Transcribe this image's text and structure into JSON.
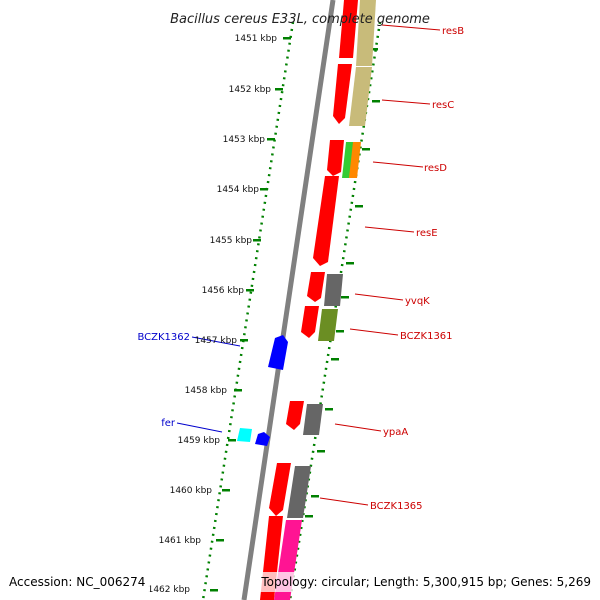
{
  "title": "Bacillus cereus E33L, complete genome",
  "accession": "Accession: NC_006274",
  "topology": "Topology: circular; Length: 5,300,915 bp; Genes: 5,269",
  "colors": {
    "backbone": "#808080",
    "tick": "#008000",
    "label_right": "#cc0000",
    "label_left": "#0000cc",
    "cds": "#ff0000",
    "gene_left": "#0000ff",
    "gene_cyan": "#00ffff",
    "blast_khaki": "#c8bb7a",
    "blast_green": "#33cc33",
    "blast_orange": "#ff8800",
    "blast_gray": "#666666",
    "blast_olive": "#6b8e23",
    "blast_magenta": "#ff1493"
  },
  "ticks": [
    {
      "label": "1451 kbp"
    },
    {
      "label": "1452 kbp"
    },
    {
      "label": "1453 kbp"
    },
    {
      "label": "1454 kbp"
    },
    {
      "label": "1455 kbp"
    },
    {
      "label": "1456 kbp"
    },
    {
      "label": "1457 kbp"
    },
    {
      "label": "1458 kbp"
    },
    {
      "label": "1459 kbp"
    },
    {
      "label": "1460 kbp"
    },
    {
      "label": "1461 kbp"
    },
    {
      "label": "1462 kbp"
    }
  ],
  "genes_right": [
    {
      "name": "resB"
    },
    {
      "name": "resC"
    },
    {
      "name": "resD"
    },
    {
      "name": "resE"
    },
    {
      "name": "yvqK"
    },
    {
      "name": "BCZK1361"
    },
    {
      "name": "ypaA"
    },
    {
      "name": "BCZK1365"
    }
  ],
  "genes_left": [
    {
      "name": "BCZK1362"
    },
    {
      "name": "fer"
    }
  ]
}
